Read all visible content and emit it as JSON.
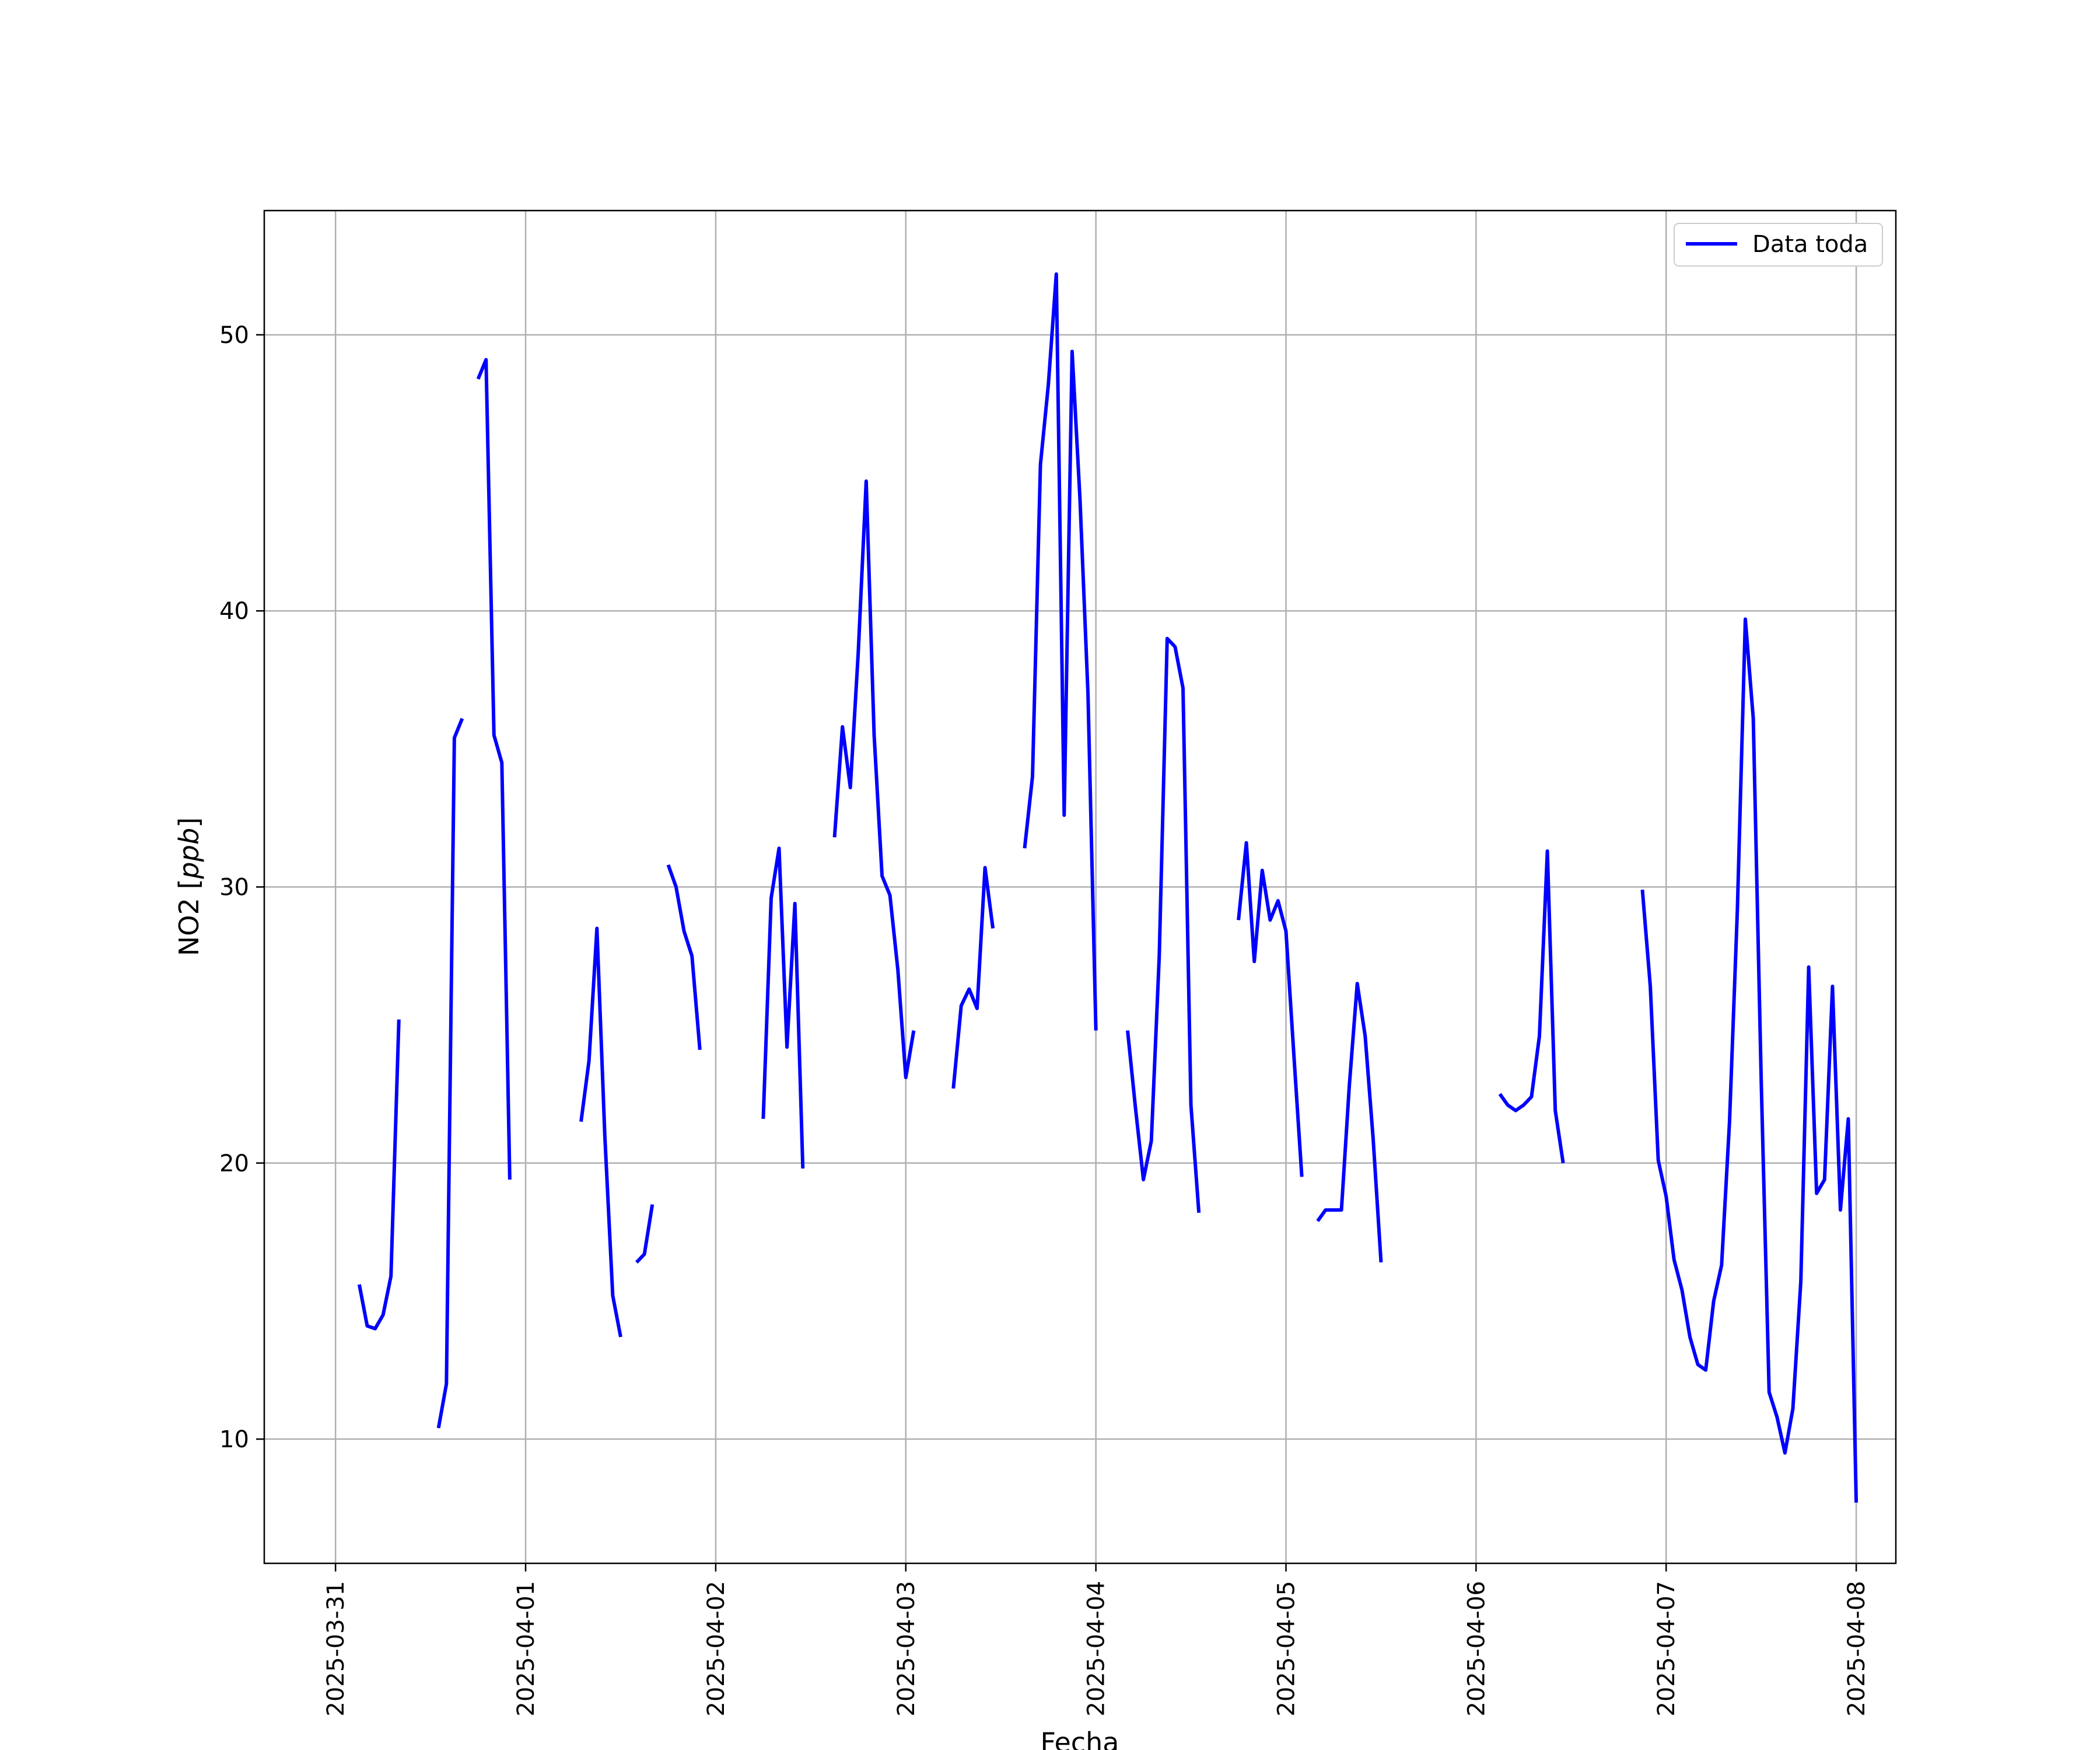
{
  "chart_data": {
    "type": "line",
    "title": "",
    "xlabel": "Fecha",
    "ylabel_main": "NO2 [",
    "ylabel_unit": "ppb",
    "ylabel_close": "]",
    "x_ticks": [
      "2025-03-31",
      "2025-04-01",
      "2025-04-02",
      "2025-04-03",
      "2025-04-04",
      "2025-04-05",
      "2025-04-06",
      "2025-04-07",
      "2025-04-08"
    ],
    "y_ticks": [
      "10",
      "20",
      "30",
      "40",
      "50"
    ],
    "xlim": [
      "2025-03-30 15:00",
      "2025-04-08 05:00"
    ],
    "ylim": [
      5.5,
      54.5
    ],
    "grid": true,
    "legend_position": "top-right",
    "series": [
      {
        "name": "Data toda",
        "color": "#0000ff",
        "segments": [
          [
            [
              "2025-03-31 03:00",
              15.6
            ],
            [
              "2025-03-31 04:00",
              14.1
            ],
            [
              "2025-03-31 05:00",
              14.0
            ],
            [
              "2025-03-31 06:00",
              14.5
            ],
            [
              "2025-03-31 07:00",
              15.9
            ],
            [
              "2025-03-31 08:00",
              25.2
            ]
          ],
          [
            [
              "2025-03-31 13:00",
              10.4
            ],
            [
              "2025-03-31 14:00",
              12.0
            ],
            [
              "2025-03-31 15:00",
              35.4
            ],
            [
              "2025-03-31 16:00",
              36.1
            ]
          ],
          [
            [
              "2025-03-31 18:00",
              48.4
            ],
            [
              "2025-03-31 19:00",
              49.1
            ],
            [
              "2025-03-31 20:00",
              35.5
            ],
            [
              "2025-03-31 21:00",
              34.5
            ],
            [
              "2025-03-31 22:00",
              19.4
            ]
          ],
          [
            [
              "2025-04-01 07:00",
              21.5
            ],
            [
              "2025-04-01 08:00",
              23.7
            ],
            [
              "2025-04-01 09:00",
              28.5
            ],
            [
              "2025-04-01 10:00",
              21.0
            ],
            [
              "2025-04-01 11:00",
              15.2
            ],
            [
              "2025-04-01 12:00",
              13.7
            ]
          ],
          [
            [
              "2025-04-01 14:00",
              16.4
            ],
            [
              "2025-04-01 15:00",
              16.7
            ],
            [
              "2025-04-01 16:00",
              18.5
            ]
          ],
          [
            [
              "2025-04-01 18:00",
              30.8
            ],
            [
              "2025-04-01 19:00",
              30.0
            ],
            [
              "2025-04-01 20:00",
              28.4
            ],
            [
              "2025-04-01 21:00",
              27.5
            ],
            [
              "2025-04-01 22:00",
              24.1
            ]
          ],
          [
            [
              "2025-04-02 06:00",
              21.6
            ],
            [
              "2025-04-02 07:00",
              29.6
            ],
            [
              "2025-04-02 08:00",
              31.4
            ],
            [
              "2025-04-02 09:00",
              24.2
            ],
            [
              "2025-04-02 10:00",
              29.4
            ],
            [
              "2025-04-02 11:00",
              19.8
            ]
          ],
          [
            [
              "2025-04-02 15:00",
              31.8
            ],
            [
              "2025-04-02 16:00",
              35.8
            ],
            [
              "2025-04-02 17:00",
              33.6
            ],
            [
              "2025-04-02 18:00",
              38.5
            ],
            [
              "2025-04-02 19:00",
              44.7
            ],
            [
              "2025-04-02 20:00",
              35.5
            ],
            [
              "2025-04-02 21:00",
              30.4
            ],
            [
              "2025-04-02 22:00",
              29.7
            ],
            [
              "2025-04-02 23:00",
              27.0
            ],
            [
              "2025-04-03 00:00",
              23.1
            ],
            [
              "2025-04-03 01:00",
              24.8
            ]
          ],
          [
            [
              "2025-04-03 06:00",
              22.7
            ],
            [
              "2025-04-03 07:00",
              25.7
            ],
            [
              "2025-04-03 08:00",
              26.3
            ],
            [
              "2025-04-03 09:00",
              25.6
            ],
            [
              "2025-04-03 10:00",
              30.7
            ],
            [
              "2025-04-03 11:00",
              28.5
            ]
          ],
          [
            [
              "2025-04-03 15:00",
              31.4
            ],
            [
              "2025-04-03 16:00",
              34.0
            ],
            [
              "2025-04-03 17:00",
              45.3
            ],
            [
              "2025-04-03 18:00",
              48.2
            ],
            [
              "2025-04-03 19:00",
              52.2
            ],
            [
              "2025-04-03 20:00",
              32.6
            ],
            [
              "2025-04-03 21:00",
              49.4
            ],
            [
              "2025-04-03 22:00",
              44.0
            ],
            [
              "2025-04-03 23:00",
              37.0
            ],
            [
              "2025-04-04 00:00",
              24.8
            ]
          ],
          [
            [
              "2025-04-04 04:00",
              24.8
            ],
            [
              "2025-04-04 05:00",
              22.0
            ],
            [
              "2025-04-04 06:00",
              19.4
            ],
            [
              "2025-04-04 07:00",
              20.8
            ],
            [
              "2025-04-04 08:00",
              27.5
            ],
            [
              "2025-04-04 09:00",
              39.0
            ],
            [
              "2025-04-04 10:00",
              38.7
            ],
            [
              "2025-04-04 11:00",
              37.2
            ],
            [
              "2025-04-04 12:00",
              22.1
            ],
            [
              "2025-04-04 13:00",
              18.2
            ]
          ],
          [
            [
              "2025-04-04 18:00",
              28.8
            ],
            [
              "2025-04-04 19:00",
              31.6
            ],
            [
              "2025-04-04 20:00",
              27.3
            ],
            [
              "2025-04-04 21:00",
              30.6
            ],
            [
              "2025-04-04 22:00",
              28.8
            ],
            [
              "2025-04-04 23:00",
              29.5
            ],
            [
              "2025-04-05 00:00",
              28.4
            ],
            [
              "2025-04-05 01:00",
              23.9
            ],
            [
              "2025-04-05 02:00",
              19.5
            ]
          ],
          [
            [
              "2025-04-05 04:00",
              17.9
            ],
            [
              "2025-04-05 05:00",
              18.3
            ],
            [
              "2025-04-05 06:00",
              18.3
            ],
            [
              "2025-04-05 07:00",
              18.3
            ],
            [
              "2025-04-05 08:00",
              22.8
            ],
            [
              "2025-04-05 09:00",
              26.5
            ],
            [
              "2025-04-05 10:00",
              24.6
            ],
            [
              "2025-04-05 11:00",
              20.9
            ],
            [
              "2025-04-05 12:00",
              16.4
            ]
          ],
          [
            [
              "2025-04-06 03:00",
              22.5
            ],
            [
              "2025-04-06 04:00",
              22.1
            ],
            [
              "2025-04-06 05:00",
              21.9
            ],
            [
              "2025-04-06 06:00",
              22.1
            ],
            [
              "2025-04-06 07:00",
              22.4
            ],
            [
              "2025-04-06 08:00",
              24.6
            ],
            [
              "2025-04-06 09:00",
              31.3
            ],
            [
              "2025-04-06 10:00",
              21.9
            ],
            [
              "2025-04-06 11:00",
              20.0
            ]
          ],
          [
            [
              "2025-04-06 21:00",
              29.9
            ],
            [
              "2025-04-06 22:00",
              26.4
            ],
            [
              "2025-04-06 23:00",
              20.1
            ],
            [
              "2025-04-07 00:00",
              18.8
            ],
            [
              "2025-04-07 01:00",
              16.5
            ],
            [
              "2025-04-07 02:00",
              15.4
            ],
            [
              "2025-04-07 03:00",
              13.7
            ],
            [
              "2025-04-07 04:00",
              12.7
            ],
            [
              "2025-04-07 05:00",
              12.5
            ],
            [
              "2025-04-07 06:00",
              15.0
            ],
            [
              "2025-04-07 07:00",
              16.3
            ],
            [
              "2025-04-07 08:00",
              21.5
            ],
            [
              "2025-04-07 09:00",
              29.2
            ],
            [
              "2025-04-07 10:00",
              39.7
            ],
            [
              "2025-04-07 11:00",
              36.1
            ],
            [
              "2025-04-07 12:00",
              23.0
            ],
            [
              "2025-04-07 13:00",
              11.7
            ],
            [
              "2025-04-07 14:00",
              10.8
            ],
            [
              "2025-04-07 15:00",
              9.5
            ],
            [
              "2025-04-07 16:00",
              11.1
            ],
            [
              "2025-04-07 17:00",
              15.7
            ],
            [
              "2025-04-07 18:00",
              27.1
            ],
            [
              "2025-04-07 19:00",
              18.9
            ],
            [
              "2025-04-07 20:00",
              19.4
            ],
            [
              "2025-04-07 21:00",
              26.4
            ],
            [
              "2025-04-07 22:00",
              18.3
            ],
            [
              "2025-04-07 23:00",
              21.6
            ],
            [
              "2025-04-08 00:00",
              7.7
            ]
          ]
        ]
      }
    ]
  }
}
